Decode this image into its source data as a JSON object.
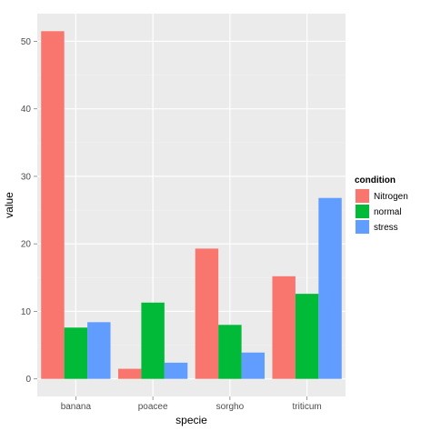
{
  "chart_data": {
    "type": "bar",
    "categories": [
      "banana",
      "poacee",
      "sorgho",
      "triticum"
    ],
    "series": [
      {
        "name": "Nitrogen",
        "values": [
          51.5,
          1.5,
          19.3,
          15.2
        ],
        "color": "#F8766D"
      },
      {
        "name": "normal",
        "values": [
          7.6,
          11.3,
          8.0,
          12.6
        ],
        "color": "#00BA38"
      },
      {
        "name": "stress",
        "values": [
          8.4,
          2.4,
          3.9,
          26.8
        ],
        "color": "#619CFF"
      }
    ],
    "xlabel": "specie",
    "ylabel": "value",
    "ylim": [
      -2.6,
      54.1
    ],
    "yticks": [
      0,
      10,
      20,
      30,
      40,
      50
    ],
    "grid": true,
    "legend": {
      "title": "condition",
      "position": "right"
    },
    "panel_background": "#EBEBEB"
  }
}
